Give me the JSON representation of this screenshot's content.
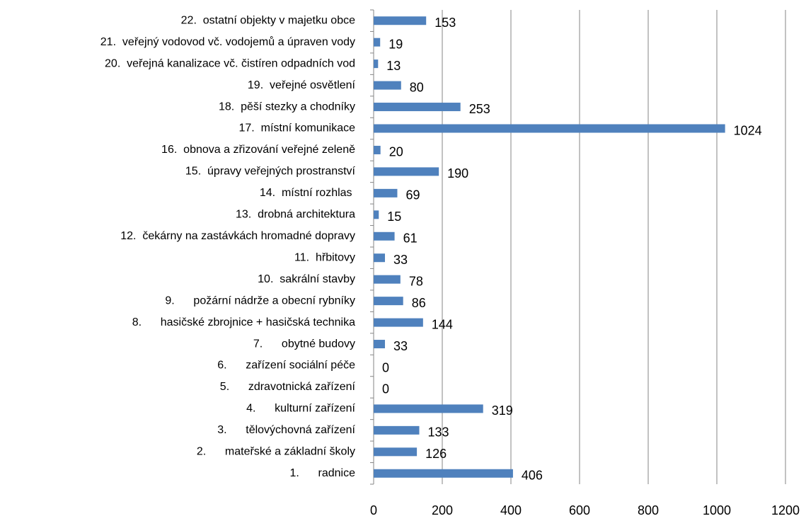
{
  "chart_data": {
    "type": "hbar",
    "categories": [
      "1.      radnice",
      "2.      mateřské a základní školy",
      "3.      tělovýchovná zařízení",
      "4.      kulturní zařízení",
      "5.      zdravotnická zařízení",
      "6.      zařízení sociální péče",
      "7.      obytné budovy",
      "8.      hasičské zbrojnice + hasičská technika",
      "9.      požární nádrže a obecní rybníky",
      "10.  sakrální stavby",
      "11.  hřbitovy",
      "12.  čekárny na zastávkách hromadné dopravy",
      "13.  drobná architektura",
      "14.  místní rozhlas ",
      "15.  úpravy veřejných prostranství",
      "16.  obnova a zřizování veřejné zeleně",
      "17.  místní komunikace",
      "18.  pěší stezky a chodníky",
      "19.  veřejné osvětlení",
      "20.  veřejná kanalizace vč. čistíren odpadních vod",
      "21.  veřejný vodovod vč. vodojemů a úpraven vody",
      "22.  ostatní objekty v majetku obce"
    ],
    "values": [
      406,
      126,
      133,
      319,
      0,
      0,
      33,
      144,
      86,
      78,
      33,
      61,
      15,
      69,
      190,
      20,
      1024,
      253,
      80,
      13,
      19,
      153
    ],
    "color": "#4f81bd",
    "xlim": [
      0,
      1200
    ],
    "xticks": [
      0,
      200,
      400,
      600,
      800,
      1000,
      1200
    ],
    "grid": true
  }
}
